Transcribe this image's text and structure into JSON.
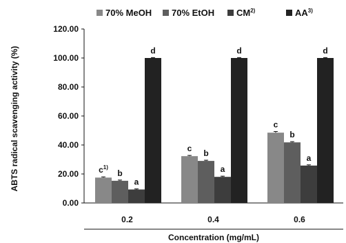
{
  "chart_data": {
    "type": "bar",
    "categories": [
      "0.2",
      "0.4",
      "0.6"
    ],
    "series": [
      {
        "name": "70% MeOH",
        "name_sup": "",
        "color": "#888888",
        "values": [
          17.5,
          32.3,
          48.5
        ],
        "errors": [
          0.5,
          0.5,
          0.8
        ],
        "letters": [
          {
            "text": "c",
            "sup": "1)"
          },
          {
            "text": "c",
            "sup": ""
          },
          {
            "text": "c",
            "sup": ""
          }
        ]
      },
      {
        "name": "70% EtOH",
        "name_sup": "",
        "color": "#5e5e5e",
        "values": [
          15.3,
          29.0,
          41.8
        ],
        "errors": [
          0.5,
          0.5,
          0.5
        ],
        "letters": [
          {
            "text": "b",
            "sup": ""
          },
          {
            "text": "b",
            "sup": ""
          },
          {
            "text": "b",
            "sup": ""
          }
        ]
      },
      {
        "name": "CM",
        "name_sup": "2)",
        "color": "#3d3d3d",
        "values": [
          9.3,
          18.0,
          25.8
        ],
        "errors": [
          0.4,
          0.5,
          0.5
        ],
        "letters": [
          {
            "text": "a",
            "sup": ""
          },
          {
            "text": "a",
            "sup": ""
          },
          {
            "text": "a",
            "sup": ""
          }
        ]
      },
      {
        "name": "AA",
        "name_sup": "3)",
        "color": "#222222",
        "values": [
          100.0,
          100.0,
          100.0
        ],
        "errors": [
          0.3,
          0.3,
          0.3
        ],
        "letters": [
          {
            "text": "d",
            "sup": ""
          },
          {
            "text": "d",
            "sup": ""
          },
          {
            "text": "d",
            "sup": ""
          }
        ]
      }
    ],
    "yticks": [
      "0.00",
      "20.00",
      "40.00",
      "60.00",
      "80.00",
      "100.00",
      "120.00"
    ],
    "title": "",
    "xlabel": "Concentration (mg/mL)",
    "ylabel": "ABTS radical scavenging activity (%)",
    "ylim": [
      0,
      120
    ],
    "grid": false,
    "legend_position": "top"
  }
}
